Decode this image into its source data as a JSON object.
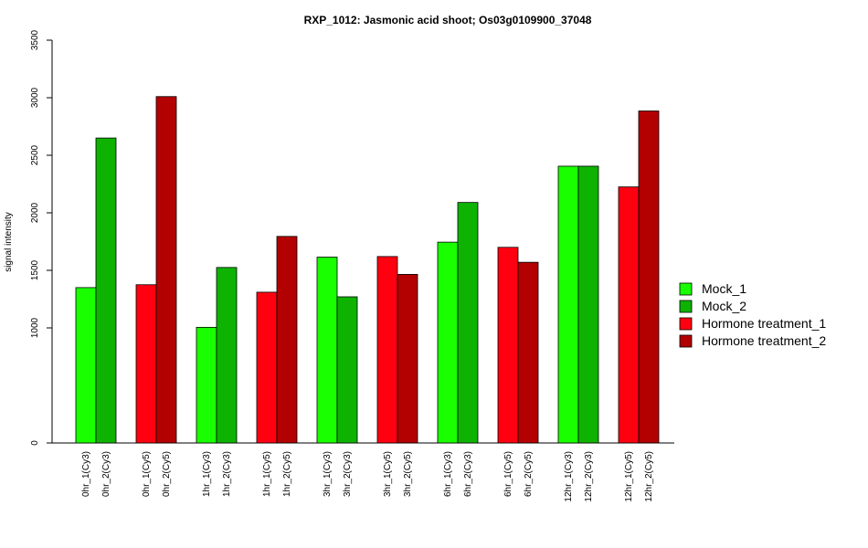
{
  "chart_data": {
    "type": "bar",
    "title": "RXP_1012: Jasmonic acid shoot; Os03g0109900_37048",
    "xlabel": "",
    "ylabel": "signal intensity",
    "ylim": [
      0,
      3500
    ],
    "yticks": [
      0,
      1000,
      1500,
      2000,
      2500,
      3000,
      3500
    ],
    "grid": false,
    "legend_position": "right",
    "legend": [
      {
        "name": "Mock_1",
        "color": "#1aff00"
      },
      {
        "name": "Mock_2",
        "color": "#0db300"
      },
      {
        "name": "Hormone treatment_1",
        "color": "#ff0010"
      },
      {
        "name": "Hormone treatment_2",
        "color": "#b30000"
      }
    ],
    "bars": [
      {
        "label": "0hr_1(Cy3)",
        "value": 1350,
        "series": 0
      },
      {
        "label": "0hr_2(Cy3)",
        "value": 2650,
        "series": 1
      },
      {
        "label": "0hr_1(Cy5)",
        "value": 1375,
        "series": 2
      },
      {
        "label": "0hr_2(Cy5)",
        "value": 3010,
        "series": 3
      },
      {
        "label": "1hr_1(Cy3)",
        "value": 1005,
        "series": 0
      },
      {
        "label": "1hr_2(Cy3)",
        "value": 1525,
        "series": 1
      },
      {
        "label": "1hr_1(Cy5)",
        "value": 1310,
        "series": 2
      },
      {
        "label": "1hr_2(Cy5)",
        "value": 1795,
        "series": 3
      },
      {
        "label": "3hr_1(Cy3)",
        "value": 1615,
        "series": 0
      },
      {
        "label": "3hr_2(Cy3)",
        "value": 1270,
        "series": 1
      },
      {
        "label": "3hr_1(Cy5)",
        "value": 1620,
        "series": 2
      },
      {
        "label": "3hr_2(Cy5)",
        "value": 1465,
        "series": 3
      },
      {
        "label": "6hr_1(Cy3)",
        "value": 1745,
        "series": 0
      },
      {
        "label": "6hr_2(Cy3)",
        "value": 2090,
        "series": 1
      },
      {
        "label": "6hr_1(Cy5)",
        "value": 1700,
        "series": 2
      },
      {
        "label": "6hr_2(Cy5)",
        "value": 1570,
        "series": 3
      },
      {
        "label": "12hr_1(Cy3)",
        "value": 2405,
        "series": 0
      },
      {
        "label": "12hr_2(Cy3)",
        "value": 2405,
        "series": 1
      },
      {
        "label": "12hr_1(Cy5)",
        "value": 2225,
        "series": 2
      },
      {
        "label": "12hr_2(Cy5)",
        "value": 2885,
        "series": 3
      }
    ]
  }
}
